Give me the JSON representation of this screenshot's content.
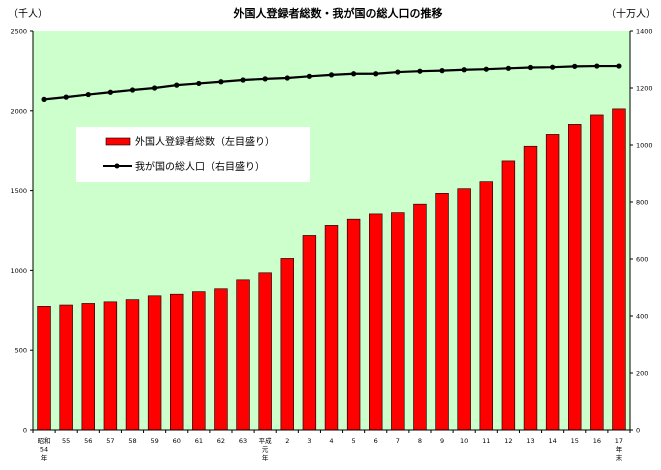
{
  "chart_data": {
    "type": "bar",
    "title": "外国人登録者総数・我が国の総人口の推移",
    "left_unit": "（千人）",
    "right_unit": "（十万人）",
    "categories": [
      [
        "昭和",
        "54",
        "年"
      ],
      [
        "55"
      ],
      [
        "56"
      ],
      [
        "57"
      ],
      [
        "58"
      ],
      [
        "59"
      ],
      [
        "60"
      ],
      [
        "61"
      ],
      [
        "62"
      ],
      [
        "63"
      ],
      [
        "平成",
        "元",
        "年"
      ],
      [
        "2"
      ],
      [
        "3"
      ],
      [
        "4"
      ],
      [
        "5"
      ],
      [
        "6"
      ],
      [
        "7"
      ],
      [
        "8"
      ],
      [
        "9"
      ],
      [
        "10"
      ],
      [
        "11"
      ],
      [
        "12"
      ],
      [
        "13"
      ],
      [
        "14"
      ],
      [
        "15"
      ],
      [
        "16"
      ],
      [
        "17",
        "年",
        "末"
      ]
    ],
    "series": [
      {
        "name": "外国人登録者総数（左目盛り）",
        "axis": "left",
        "type": "bar",
        "values": [
          775,
          783,
          793,
          803,
          817,
          841,
          851,
          867,
          885,
          941,
          985,
          1075,
          1219,
          1282,
          1321,
          1354,
          1362,
          1415,
          1483,
          1512,
          1556,
          1686,
          1778,
          1852,
          1915,
          1974,
          2012
        ]
      },
      {
        "name": "我が国の総人口（右目盛り）",
        "axis": "right",
        "type": "line",
        "values": [
          1160,
          1168,
          1177,
          1185,
          1193,
          1200,
          1210,
          1216,
          1222,
          1228,
          1232,
          1235,
          1241,
          1246,
          1250,
          1250,
          1256,
          1259,
          1261,
          1264,
          1266,
          1269,
          1272,
          1273,
          1276,
          1277,
          1277
        ]
      }
    ],
    "yleft": {
      "min": 0,
      "max": 2500,
      "ticks": [
        0,
        500,
        1000,
        1500,
        2000,
        2500
      ]
    },
    "yright": {
      "min": 0,
      "max": 1400,
      "ticks": [
        0,
        200,
        400,
        600,
        800,
        1000,
        1200,
        1400
      ]
    },
    "grid": false,
    "legend_position": "upper-left-inside",
    "colors": {
      "plot_background": "#ccffcc",
      "bar_fill": "#ff0000",
      "bar_stroke": "#000000",
      "line": "#000000"
    }
  }
}
